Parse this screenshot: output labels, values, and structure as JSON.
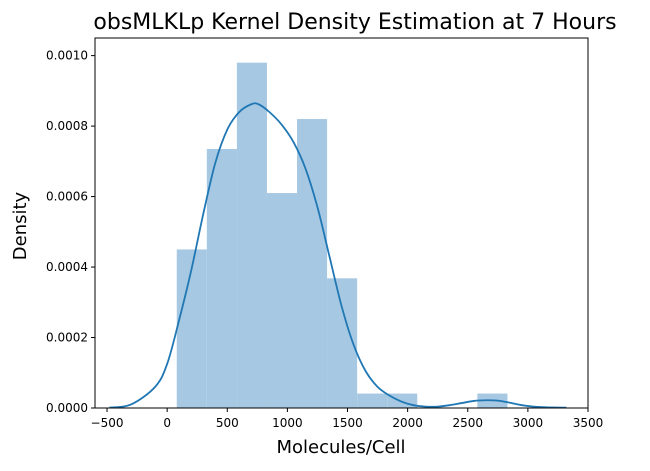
{
  "chart_data": {
    "type": "bar",
    "title": "obsMLKLp Kernel Density Estimation at 7 Hours",
    "xlabel": "Molecules/Cell",
    "ylabel": "Density",
    "xlim": [
      -600,
      3500
    ],
    "ylim": [
      0,
      0.00105
    ],
    "xticks": [
      -500,
      0,
      500,
      1000,
      1500,
      2000,
      2500,
      3000,
      3500
    ],
    "xtick_labels": [
      "−500",
      "0",
      "500",
      "1000",
      "1500",
      "2000",
      "2500",
      "3000",
      "3500"
    ],
    "yticks": [
      0,
      0.0002,
      0.0004,
      0.0006,
      0.0008,
      0.001
    ],
    "ytick_labels": [
      "0.0000",
      "0.0002",
      "0.0004",
      "0.0006",
      "0.0008",
      "0.0010"
    ],
    "grid": false,
    "series": [
      {
        "kind": "histogram",
        "color": "#a6c8e2",
        "bins": [
          {
            "x0": 80,
            "x1": 330,
            "density": 0.00045
          },
          {
            "x0": 330,
            "x1": 580,
            "density": 0.000735
          },
          {
            "x0": 580,
            "x1": 830,
            "density": 0.00098
          },
          {
            "x0": 830,
            "x1": 1080,
            "density": 0.00061
          },
          {
            "x0": 1080,
            "x1": 1330,
            "density": 0.00082
          },
          {
            "x0": 1330,
            "x1": 1580,
            "density": 0.000368
          },
          {
            "x0": 1580,
            "x1": 1830,
            "density": 4.1e-05
          },
          {
            "x0": 1830,
            "x1": 2080,
            "density": 4.1e-05
          },
          {
            "x0": 2080,
            "x1": 2330,
            "density": 0
          },
          {
            "x0": 2330,
            "x1": 2580,
            "density": 0
          },
          {
            "x0": 2580,
            "x1": 2830,
            "density": 4.1e-05
          }
        ]
      },
      {
        "kind": "kde",
        "color": "#1f77b4",
        "x": [
          -480,
          -300,
          -100,
          0,
          100,
          200,
          300,
          400,
          500,
          600,
          700,
          760,
          850,
          950,
          1050,
          1150,
          1250,
          1350,
          1450,
          1550,
          1650,
          1750,
          1850,
          1950,
          2050,
          2150,
          2250,
          2350,
          2450,
          2550,
          2650,
          2750,
          2850,
          2950,
          3050,
          3150,
          3320
        ],
        "y": [
          1e-06,
          1e-05,
          6e-05,
          0.000125,
          0.00025,
          0.00039,
          0.00055,
          0.000695,
          0.00079,
          0.00084,
          0.000862,
          0.000862,
          0.00084,
          0.000805,
          0.000755,
          0.00068,
          0.00057,
          0.00043,
          0.00029,
          0.00018,
          0.000105,
          6e-05,
          3.5e-05,
          1.8e-05,
          8e-06,
          4e-06,
          4e-06,
          8e-06,
          1.4e-05,
          2e-05,
          2.2e-05,
          2.1e-05,
          1.5e-05,
          8e-06,
          4e-06,
          2e-06,
          1e-06
        ]
      }
    ]
  }
}
